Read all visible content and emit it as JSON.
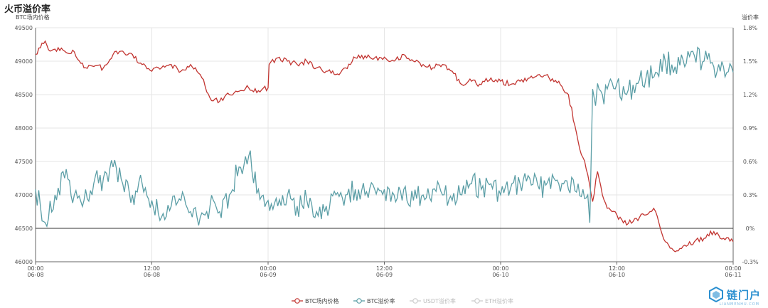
{
  "header": {
    "title": "火币溢价率"
  },
  "chart_data": {
    "type": "line",
    "title": "火币溢价率",
    "ylabel_left": "BTC场内价格",
    "ylabel_right": "溢价率",
    "ylim_left": [
      46000,
      49500
    ],
    "yticks_left": [
      "49500",
      "49000",
      "48500",
      "48000",
      "47500",
      "47000",
      "46500",
      "46000"
    ],
    "ylim_right": [
      -0.3,
      1.8
    ],
    "yticks_right": [
      "1.8%",
      "1.5%",
      "1.2%",
      "0.9%",
      "0.6%",
      "0.3%",
      "0%",
      "-0.3%"
    ],
    "xlim_hours": [
      0,
      72
    ],
    "xticks": [
      {
        "time": "00:00",
        "date": "06-08"
      },
      {
        "time": "12:00",
        "date": "06-08"
      },
      {
        "time": "00:00",
        "date": "06-09"
      },
      {
        "time": "12:00",
        "date": "06-09"
      },
      {
        "time": "00:00",
        "date": "06-10"
      },
      {
        "time": "12:00",
        "date": "06-10"
      },
      {
        "time": "00:00",
        "date": "06-11"
      }
    ],
    "grid": true,
    "legend_position": "bottom",
    "legend": [
      {
        "name": "BTC场内价格",
        "color": "#c23531",
        "active": true
      },
      {
        "name": "BTC溢价率",
        "color": "#5b9ea6",
        "active": true
      },
      {
        "name": "USDT溢价率",
        "color": "#cccccc",
        "active": false
      },
      {
        "name": "ETH溢价率",
        "color": "#cccccc",
        "active": false
      }
    ],
    "series": [
      {
        "name": "BTC场内价格",
        "axis": "left",
        "color": "#c23531",
        "x": [
          0,
          0.5,
          1,
          1.5,
          2,
          2.5,
          3,
          4,
          5,
          6,
          7,
          8,
          9,
          10,
          11,
          12,
          13,
          14,
          15,
          16,
          17,
          18,
          19,
          20,
          21,
          22,
          23,
          24,
          24.1,
          25,
          26,
          27,
          28,
          29,
          30,
          31,
          32,
          33,
          34,
          35,
          36,
          37,
          38,
          39,
          40,
          41,
          42,
          43,
          44,
          45,
          46,
          47,
          48,
          49,
          50,
          51,
          52,
          53,
          54,
          55,
          56,
          57,
          57.5,
          58,
          58.5,
          59,
          59.5,
          60,
          61,
          62,
          63,
          63.8,
          64,
          65,
          66,
          67,
          68,
          69,
          70,
          71,
          72
        ],
        "y": [
          49100,
          49200,
          49300,
          49150,
          49180,
          49160,
          49150,
          49140,
          48900,
          48920,
          48900,
          49100,
          49150,
          49100,
          48950,
          48850,
          48900,
          48950,
          48850,
          48950,
          48800,
          48450,
          48400,
          48500,
          48550,
          48600,
          48560,
          48600,
          48950,
          49050,
          49000,
          48950,
          49000,
          48900,
          48850,
          48800,
          48900,
          49050,
          49080,
          49050,
          49060,
          49000,
          49100,
          49000,
          48950,
          48900,
          48950,
          48850,
          48650,
          48700,
          48650,
          48750,
          48700,
          48650,
          48700,
          48750,
          48800,
          48750,
          48700,
          48500,
          47800,
          47300,
          46900,
          47350,
          47000,
          46800,
          46750,
          46700,
          46550,
          46650,
          46700,
          46800,
          46750,
          46300,
          46150,
          46250,
          46300,
          46350,
          46450,
          46350,
          46300
        ]
      },
      {
        "name": "BTC溢价率",
        "axis": "right",
        "color": "#5b9ea6",
        "x": [
          0,
          0.5,
          1,
          2,
          3,
          4,
          5,
          6,
          7,
          8,
          9,
          10,
          11,
          12,
          13,
          14,
          15,
          16,
          17,
          18,
          19,
          20,
          21,
          22,
          23,
          24,
          25,
          26,
          27,
          28,
          29,
          30,
          31,
          32,
          33,
          34,
          35,
          36,
          37,
          38,
          39,
          40,
          41,
          42,
          43,
          44,
          45,
          46,
          47,
          48,
          49,
          50,
          51,
          52,
          53,
          54,
          55,
          56,
          56.5,
          57,
          57.2,
          57.5,
          57.8,
          58,
          58.5,
          59,
          60,
          61,
          62,
          63,
          64,
          65,
          66,
          67,
          68,
          69,
          70,
          71,
          72
        ],
        "y": [
          0.35,
          0.2,
          0.05,
          0.3,
          0.45,
          0.3,
          0.25,
          0.4,
          0.45,
          0.55,
          0.4,
          0.3,
          0.4,
          0.25,
          0.1,
          0.2,
          0.25,
          0.15,
          0.1,
          0.2,
          0.15,
          0.3,
          0.55,
          0.65,
          0.35,
          0.25,
          0.2,
          0.3,
          0.2,
          0.25,
          0.15,
          0.2,
          0.3,
          0.3,
          0.35,
          0.3,
          0.35,
          0.35,
          0.3,
          0.35,
          0.25,
          0.3,
          0.35,
          0.3,
          0.25,
          0.3,
          0.4,
          0.35,
          0.4,
          0.3,
          0.35,
          0.4,
          0.45,
          0.35,
          0.45,
          0.4,
          0.35,
          0.4,
          0.35,
          0.3,
          0.05,
          1.25,
          1.1,
          1.3,
          1.2,
          1.25,
          1.3,
          1.2,
          1.3,
          1.35,
          1.4,
          1.5,
          1.45,
          1.45,
          1.55,
          1.5,
          1.45,
          1.45,
          1.4
        ]
      }
    ]
  },
  "branding": {
    "name": "链门户",
    "sub": "LIANMENHU.COM"
  }
}
